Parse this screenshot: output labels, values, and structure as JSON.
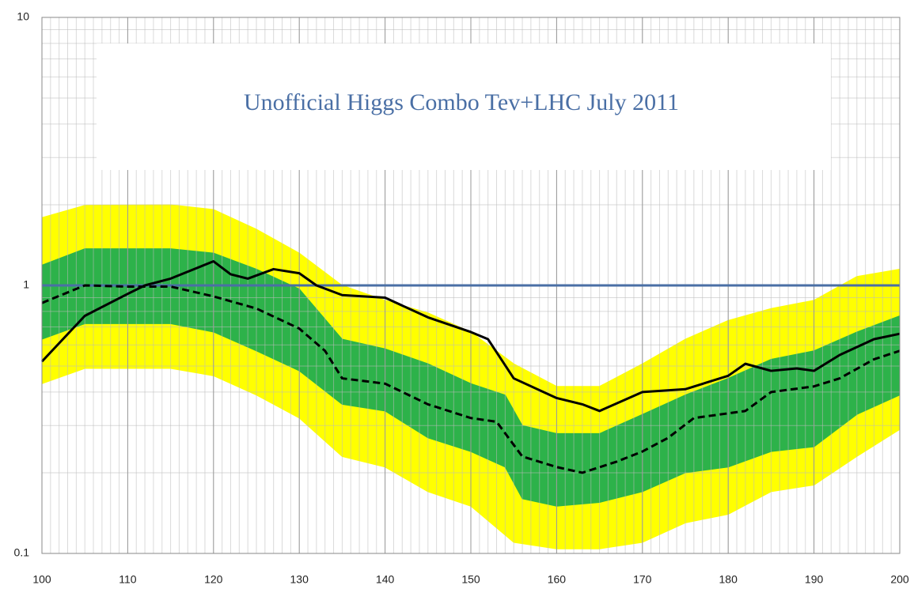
{
  "chart_data": {
    "type": "line",
    "title": "Unofficial Higgs Combo Tev+LHC   July 2011",
    "xlim": [
      100,
      200
    ],
    "xticks": [
      100,
      110,
      120,
      130,
      140,
      150,
      160,
      170,
      180,
      190,
      200
    ],
    "ylim": [
      0.1,
      10
    ],
    "yticks": [
      0.1,
      1,
      10
    ],
    "log_y": true,
    "grid": {
      "x_step": 1,
      "y_minor": [
        0.2,
        0.3,
        0.4,
        0.5,
        0.6,
        0.7,
        0.8,
        0.9,
        2,
        3,
        4,
        5,
        6,
        7,
        8,
        9
      ]
    },
    "hlines": [
      {
        "value": 1,
        "color": "#4a6fa5"
      }
    ],
    "bands": [
      {
        "color": "#ffff00",
        "x": [
          100,
          105,
          115,
          120,
          125,
          130,
          135,
          140,
          145,
          150,
          155,
          160,
          165,
          170,
          175,
          180,
          185,
          190,
          195,
          200
        ],
        "upper": [
          1.79,
          1.99,
          2.0,
          1.92,
          1.62,
          1.32,
          1.0,
          0.88,
          0.79,
          0.67,
          0.51,
          0.42,
          0.42,
          0.51,
          0.63,
          0.74,
          0.82,
          0.88,
          1.08,
          1.15
        ],
        "lower": [
          0.43,
          0.49,
          0.49,
          0.46,
          0.39,
          0.32,
          0.23,
          0.21,
          0.17,
          0.15,
          0.11,
          0.104,
          0.104,
          0.11,
          0.13,
          0.14,
          0.17,
          0.18,
          0.23,
          0.29
        ]
      },
      {
        "color": "#2db24a",
        "x": [
          100,
          105,
          115,
          120,
          125,
          130,
          135,
          140,
          145,
          150,
          154,
          156,
          160,
          165,
          170,
          175,
          180,
          185,
          190,
          195,
          200
        ],
        "upper": [
          1.19,
          1.37,
          1.37,
          1.32,
          1.15,
          0.97,
          0.63,
          0.58,
          0.51,
          0.43,
          0.39,
          0.3,
          0.28,
          0.28,
          0.33,
          0.39,
          0.45,
          0.53,
          0.57,
          0.67,
          0.77
        ],
        "lower": [
          0.63,
          0.72,
          0.72,
          0.67,
          0.57,
          0.48,
          0.36,
          0.34,
          0.27,
          0.24,
          0.21,
          0.16,
          0.15,
          0.155,
          0.17,
          0.2,
          0.21,
          0.24,
          0.25,
          0.33,
          0.39
        ]
      }
    ],
    "series": [
      {
        "color": "#000000",
        "dash": true,
        "x": [
          100,
          105,
          110,
          115,
          120,
          125,
          130,
          133,
          135,
          140,
          145,
          150,
          153,
          156,
          160,
          163,
          167,
          170,
          173,
          176,
          182,
          185,
          190,
          193,
          197,
          200
        ],
        "values": [
          0.86,
          1.0,
          0.99,
          0.99,
          0.91,
          0.82,
          0.69,
          0.57,
          0.45,
          0.43,
          0.36,
          0.32,
          0.31,
          0.23,
          0.21,
          0.2,
          0.22,
          0.24,
          0.27,
          0.32,
          0.34,
          0.4,
          0.42,
          0.45,
          0.53,
          0.57
        ]
      },
      {
        "color": "#000000",
        "dash": false,
        "x": [
          100,
          105,
          110,
          112,
          115,
          120,
          122,
          124,
          127,
          130,
          132,
          135,
          140,
          145,
          150,
          152,
          155,
          160,
          163,
          165,
          170,
          175,
          180,
          182,
          185,
          188,
          190,
          193,
          197,
          200
        ],
        "values": [
          0.52,
          0.77,
          0.93,
          1.0,
          1.06,
          1.23,
          1.1,
          1.06,
          1.15,
          1.11,
          1.0,
          0.92,
          0.9,
          0.76,
          0.67,
          0.63,
          0.45,
          0.38,
          0.36,
          0.34,
          0.4,
          0.41,
          0.46,
          0.51,
          0.48,
          0.49,
          0.48,
          0.55,
          0.63,
          0.66
        ]
      }
    ]
  }
}
